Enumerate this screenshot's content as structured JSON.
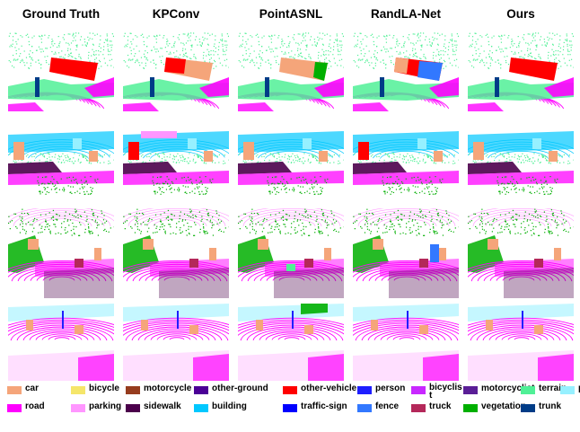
{
  "columns": [
    "Ground Truth",
    "KPConv",
    "PointASNL",
    "RandLA-Net",
    "Ours"
  ],
  "legend": [
    {
      "label": "car",
      "color": "#f5a57a"
    },
    {
      "label": "bicycle",
      "color": "#f5e66a"
    },
    {
      "label": "motorcycle",
      "color": "#963c1e"
    },
    {
      "label": "other-ground",
      "color": "#4b0096"
    },
    {
      "label": "other-vehicle",
      "color": "#ff0000"
    },
    {
      "label": "person",
      "color": "#1e1eff"
    },
    {
      "label": "bicyclis\nt",
      "color": "#c828ff"
    },
    {
      "label": "motorcyclist",
      "color": "#5a1e96"
    },
    {
      "label": "terrain",
      "color": "#50f096"
    },
    {
      "label": "pole",
      "color": "#96f0ff"
    },
    {
      "label": "road",
      "color": "#ff00ff"
    },
    {
      "label": "parking",
      "color": "#ff96ff"
    },
    {
      "label": "sidewalk",
      "color": "#4b004b"
    },
    {
      "label": "building",
      "color": "#00c8ff"
    },
    {
      "label": "traffic-sign",
      "color": "#0000ff"
    },
    {
      "label": "fence",
      "color": "#3278ff"
    },
    {
      "label": "truck",
      "color": "#b4285a"
    },
    {
      "label": "vegetation",
      "color": "#00af00"
    },
    {
      "label": "trunk",
      "color": "#003c87"
    }
  ]
}
